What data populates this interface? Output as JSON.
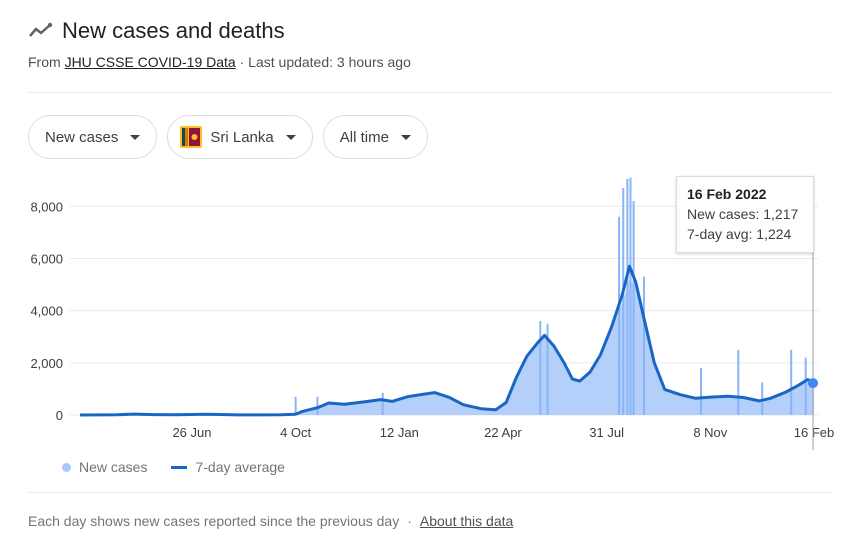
{
  "header": {
    "title": "New cases and deaths",
    "from_prefix": "From ",
    "source": "JHU CSSE COVID-19 Data",
    "updated": " · Last updated: 3 hours ago"
  },
  "filters": {
    "metric": "New cases",
    "location": "Sri Lanka",
    "range": "All time"
  },
  "tooltip": {
    "date": "16 Feb 2022",
    "new_cases": "New cases: 1,217",
    "avg": "7-day avg: 1,224"
  },
  "legend": {
    "new_cases": "New cases",
    "avg": "7-day average"
  },
  "footer": {
    "note": "Each day shows new cases reported since the previous day",
    "separator": "·",
    "about": "About this data"
  },
  "colors": {
    "area": "#a8c7fa",
    "bar": "#8ab4f8",
    "line": "#1a66c5",
    "grid": "#e8eaed"
  },
  "chart_data": {
    "type": "area",
    "x_start": "2020-03-10",
    "x_end": "2022-02-16",
    "ylim": [
      0,
      9200
    ],
    "y_ticks": [
      0,
      2000,
      4000,
      6000,
      8000
    ],
    "y_tick_labels": [
      "0",
      "2,000",
      "4,000",
      "6,000",
      "8,000"
    ],
    "x_tick_labels": [
      "26 Jun",
      "4 Oct",
      "12 Jan",
      "22 Apr",
      "31 Jul",
      "8 Nov",
      "16 Feb"
    ],
    "x_tick_dates": [
      "2020-06-26",
      "2020-10-04",
      "2021-01-12",
      "2021-04-22",
      "2021-07-31",
      "2021-11-08",
      "2022-02-16"
    ],
    "series": [
      {
        "name": "New cases",
        "points": [
          [
            "2020-03-10",
            0
          ],
          [
            "2020-04-15",
            20
          ],
          [
            "2020-05-01",
            40
          ],
          [
            "2020-05-20",
            15
          ],
          [
            "2020-06-10",
            20
          ],
          [
            "2020-07-10",
            60
          ],
          [
            "2020-08-10",
            5
          ],
          [
            "2020-09-20",
            10
          ],
          [
            "2020-10-04",
            50
          ],
          [
            "2020-10-10",
            150
          ],
          [
            "2020-10-25",
            300
          ],
          [
            "2020-11-05",
            480
          ],
          [
            "2020-11-20",
            420
          ],
          [
            "2020-12-10",
            520
          ],
          [
            "2020-12-25",
            600
          ],
          [
            "2021-01-05",
            530
          ],
          [
            "2021-01-20",
            720
          ],
          [
            "2021-02-05",
            820
          ],
          [
            "2021-02-15",
            860
          ],
          [
            "2021-03-01",
            700
          ],
          [
            "2021-03-15",
            400
          ],
          [
            "2021-04-01",
            250
          ],
          [
            "2021-04-15",
            220
          ],
          [
            "2021-04-25",
            500
          ],
          [
            "2021-05-05",
            1500
          ],
          [
            "2021-05-15",
            2300
          ],
          [
            "2021-05-25",
            2800
          ],
          [
            "2021-06-01",
            3000
          ],
          [
            "2021-06-10",
            2600
          ],
          [
            "2021-06-20",
            2000
          ],
          [
            "2021-06-28",
            1400
          ],
          [
            "2021-07-05",
            1300
          ],
          [
            "2021-07-15",
            1700
          ],
          [
            "2021-07-25",
            2300
          ],
          [
            "2021-08-05",
            3300
          ],
          [
            "2021-08-15",
            4300
          ],
          [
            "2021-08-22",
            5200
          ],
          [
            "2021-08-28",
            4900
          ],
          [
            "2021-09-05",
            3700
          ],
          [
            "2021-09-15",
            2100
          ],
          [
            "2021-09-25",
            1000
          ],
          [
            "2021-10-10",
            800
          ],
          [
            "2021-10-25",
            650
          ],
          [
            "2021-11-10",
            700
          ],
          [
            "2021-11-25",
            730
          ],
          [
            "2021-12-10",
            680
          ],
          [
            "2021-12-25",
            550
          ],
          [
            "2022-01-05",
            650
          ],
          [
            "2022-01-20",
            900
          ],
          [
            "2022-02-01",
            1150
          ],
          [
            "2022-02-10",
            1300
          ],
          [
            "2022-02-16",
            1217
          ]
        ]
      },
      {
        "name": "7-day average",
        "points": [
          [
            "2020-03-10",
            0
          ],
          [
            "2020-04-15",
            10
          ],
          [
            "2020-05-01",
            35
          ],
          [
            "2020-05-20",
            15
          ],
          [
            "2020-06-10",
            10
          ],
          [
            "2020-07-10",
            30
          ],
          [
            "2020-08-10",
            5
          ],
          [
            "2020-09-20",
            8
          ],
          [
            "2020-10-04",
            30
          ],
          [
            "2020-10-10",
            130
          ],
          [
            "2020-10-25",
            280
          ],
          [
            "2020-11-05",
            460
          ],
          [
            "2020-11-20",
            410
          ],
          [
            "2020-12-10",
            510
          ],
          [
            "2020-12-25",
            590
          ],
          [
            "2021-01-05",
            520
          ],
          [
            "2021-01-20",
            700
          ],
          [
            "2021-02-05",
            800
          ],
          [
            "2021-02-15",
            860
          ],
          [
            "2021-03-01",
            680
          ],
          [
            "2021-03-15",
            390
          ],
          [
            "2021-04-01",
            240
          ],
          [
            "2021-04-15",
            200
          ],
          [
            "2021-04-25",
            480
          ],
          [
            "2021-05-05",
            1450
          ],
          [
            "2021-05-15",
            2250
          ],
          [
            "2021-05-25",
            2750
          ],
          [
            "2021-06-01",
            3050
          ],
          [
            "2021-06-10",
            2650
          ],
          [
            "2021-06-20",
            2000
          ],
          [
            "2021-06-28",
            1380
          ],
          [
            "2021-07-05",
            1300
          ],
          [
            "2021-07-15",
            1650
          ],
          [
            "2021-07-25",
            2300
          ],
          [
            "2021-08-05",
            3400
          ],
          [
            "2021-08-15",
            4600
          ],
          [
            "2021-08-22",
            5700
          ],
          [
            "2021-08-28",
            5100
          ],
          [
            "2021-09-05",
            3700
          ],
          [
            "2021-09-15",
            2000
          ],
          [
            "2021-09-25",
            980
          ],
          [
            "2021-10-10",
            780
          ],
          [
            "2021-10-25",
            640
          ],
          [
            "2021-11-10",
            690
          ],
          [
            "2021-11-25",
            720
          ],
          [
            "2021-12-10",
            670
          ],
          [
            "2021-12-25",
            540
          ],
          [
            "2022-01-05",
            640
          ],
          [
            "2022-01-20",
            880
          ],
          [
            "2022-02-01",
            1140
          ],
          [
            "2022-02-10",
            1360
          ],
          [
            "2022-02-16",
            1224
          ]
        ]
      }
    ],
    "spikes": [
      [
        "2020-10-04",
        700
      ],
      [
        "2020-10-25",
        700
      ],
      [
        "2020-12-27",
        850
      ],
      [
        "2021-05-28",
        3600
      ],
      [
        "2021-06-04",
        3500
      ],
      [
        "2021-08-12",
        7600
      ],
      [
        "2021-08-16",
        8700
      ],
      [
        "2021-08-20",
        9050
      ],
      [
        "2021-08-23",
        9100
      ],
      [
        "2021-08-26",
        8200
      ],
      [
        "2021-09-05",
        5300
      ],
      [
        "2021-10-30",
        1800
      ],
      [
        "2021-12-05",
        2500
      ],
      [
        "2021-12-28",
        1250
      ],
      [
        "2022-01-25",
        2500
      ],
      [
        "2022-02-08",
        2200
      ]
    ],
    "legend_position": "bottom-left",
    "grid": true
  }
}
